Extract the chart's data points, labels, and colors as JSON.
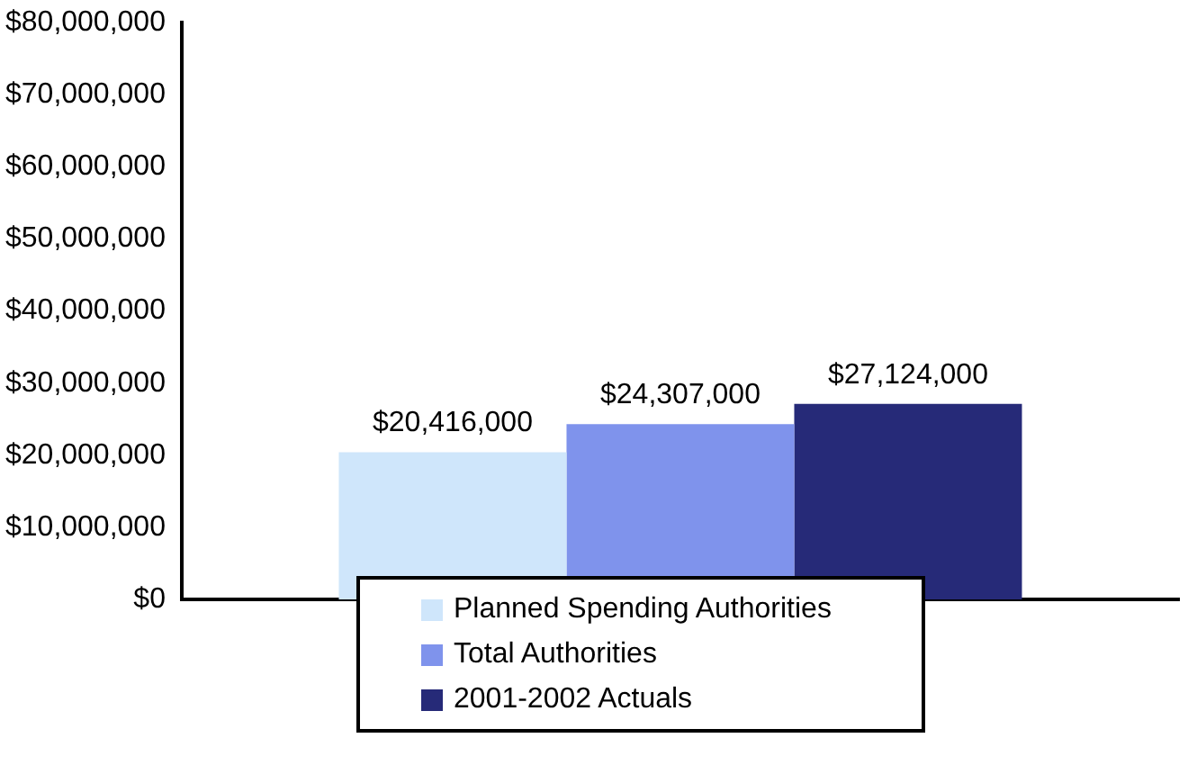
{
  "chart_data": {
    "type": "bar",
    "categories": [
      null
    ],
    "series": [
      {
        "name": "Planned Spending Authorities",
        "color": "#cfe6fb",
        "values": [
          20416000
        ],
        "value_labels": [
          "$20,416,000"
        ]
      },
      {
        "name": "Total Authorities",
        "color": "#7f93ec",
        "values": [
          24307000
        ],
        "value_labels": [
          "$24,307,000"
        ]
      },
      {
        "name": "2001-2002 Actuals",
        "color": "#262a78",
        "values": [
          27124000
        ],
        "value_labels": [
          "$27,124,000"
        ]
      }
    ],
    "ylim": [
      0,
      80000000
    ],
    "yticks": [
      {
        "value": 0,
        "label": "$0"
      },
      {
        "value": 10000000,
        "label": "$10,000,000"
      },
      {
        "value": 20000000,
        "label": "$20,000,000"
      },
      {
        "value": 30000000,
        "label": "$30,000,000"
      },
      {
        "value": 40000000,
        "label": "$40,000,000"
      },
      {
        "value": 50000000,
        "label": "$50,000,000"
      },
      {
        "value": 60000000,
        "label": "$60,000,000"
      },
      {
        "value": 70000000,
        "label": "$70,000,000"
      },
      {
        "value": 80000000,
        "label": "$80,000,000"
      }
    ],
    "grid": false,
    "legend": "bottom"
  }
}
